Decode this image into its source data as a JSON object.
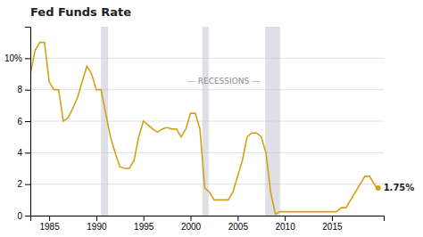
{
  "chart_data": {
    "type": "line",
    "title": "Fed Funds Rate",
    "color": "#D4A017",
    "grid": "y",
    "xlim": [
      1983,
      2020.5
    ],
    "ylim": [
      0,
      12
    ],
    "xticks": [
      1985,
      1990,
      1995,
      2000,
      2005,
      2010,
      2015
    ],
    "yticks": [
      0,
      2,
      4,
      6,
      8,
      {
        "value": 10,
        "label": "10%"
      }
    ],
    "recessions": {
      "color": "#c8ccd4",
      "ranges": [
        [
          1990.5,
          1991.25
        ],
        [
          2001.25,
          2001.92
        ],
        [
          2007.92,
          2009.5
        ]
      ]
    },
    "annotations": [
      {
        "text": "— RECESSIONS —",
        "x": 2003.5,
        "y": 8.5
      },
      {
        "text": "1.75%",
        "x": 2019.9,
        "y": 1.75
      }
    ],
    "x": [
      1983.0,
      1983.5,
      1984.0,
      1984.5,
      1985.0,
      1985.5,
      1986.0,
      1986.5,
      1987.0,
      1987.5,
      1988.0,
      1988.5,
      1989.0,
      1989.5,
      1990.0,
      1990.5,
      1991.0,
      1991.5,
      1992.0,
      1992.5,
      1993.0,
      1993.5,
      1994.0,
      1994.5,
      1995.0,
      1995.5,
      1996.0,
      1996.5,
      1997.0,
      1997.5,
      1998.0,
      1998.5,
      1999.0,
      1999.5,
      2000.0,
      2000.5,
      2001.0,
      2001.5,
      2002.0,
      2002.5,
      2003.0,
      2003.5,
      2004.0,
      2004.5,
      2005.0,
      2005.5,
      2006.0,
      2006.5,
      2007.0,
      2007.5,
      2008.0,
      2008.5,
      2009.0,
      2009.5,
      2010.0,
      2010.5,
      2011.0,
      2011.5,
      2012.0,
      2012.5,
      2013.0,
      2013.5,
      2014.0,
      2014.5,
      2015.0,
      2015.5,
      2016.0,
      2016.5,
      2017.0,
      2017.5,
      2018.0,
      2018.5,
      2019.0,
      2019.25,
      2019.5,
      2019.75,
      2019.9
    ],
    "values": [
      9.0,
      10.5,
      11.0,
      11.0,
      8.5,
      8.0,
      8.0,
      6.0,
      6.2,
      6.8,
      7.5,
      8.5,
      9.5,
      9.0,
      8.0,
      8.0,
      6.5,
      5.0,
      4.0,
      3.1,
      3.0,
      3.0,
      3.5,
      5.0,
      6.0,
      5.75,
      5.5,
      5.3,
      5.5,
      5.6,
      5.5,
      5.5,
      5.0,
      5.5,
      6.5,
      6.5,
      5.5,
      1.75,
      1.5,
      1.0,
      1.0,
      1.0,
      1.0,
      1.5,
      2.5,
      3.5,
      5.0,
      5.25,
      5.25,
      5.0,
      4.0,
      1.5,
      0.1,
      0.25,
      0.25,
      0.25,
      0.25,
      0.25,
      0.25,
      0.25,
      0.25,
      0.25,
      0.25,
      0.25,
      0.25,
      0.25,
      0.5,
      0.5,
      1.0,
      1.5,
      2.0,
      2.5,
      2.5,
      2.25,
      2.0,
      1.75,
      1.75
    ]
  }
}
